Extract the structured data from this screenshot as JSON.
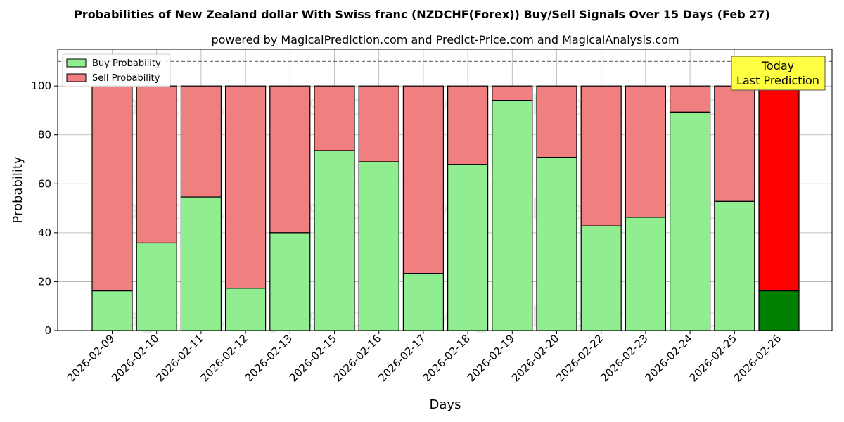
{
  "chart_data": {
    "type": "bar",
    "stacked": true,
    "title": "Probabilities of New Zealand dollar With Swiss franc (NZDCHF(Forex)) Buy/Sell Signals Over 15 Days (Feb 27)",
    "subtitle": "powered by MagicalPrediction.com and Predict-Price.com and MagicalAnalysis.com",
    "xlabel": "Days",
    "ylabel": "Probability",
    "ylim": [
      0,
      115
    ],
    "yticks": [
      0,
      20,
      40,
      60,
      80,
      100
    ],
    "grid": true,
    "legend_position": "top-left",
    "reference_line": 110,
    "categories": [
      "2026-02-09",
      "2026-02-10",
      "2026-02-11",
      "2026-02-12",
      "2026-02-13",
      "2026-02-15",
      "2026-02-16",
      "2026-02-17",
      "2026-02-18",
      "2026-02-19",
      "2026-02-20",
      "2026-02-22",
      "2026-02-23",
      "2026-02-24",
      "2026-02-25",
      "2026-02-26"
    ],
    "series": [
      {
        "name": "Buy Probability",
        "color": "#90ee90",
        "values": [
          16.2,
          35.8,
          54.6,
          17.3,
          40.0,
          73.6,
          69.0,
          23.4,
          67.9,
          94.1,
          70.8,
          42.8,
          46.3,
          89.3,
          52.8,
          16.2
        ]
      },
      {
        "name": "Sell Probability",
        "color": "#f08080",
        "values": [
          83.8,
          64.2,
          45.4,
          82.7,
          60.0,
          26.4,
          31.0,
          76.6,
          32.1,
          5.9,
          29.2,
          57.2,
          53.7,
          10.7,
          47.2,
          83.8
        ]
      }
    ],
    "today_index": 15,
    "today_colors": {
      "buy": "#008000",
      "sell": "#ff0000"
    },
    "annotation": {
      "line1": "Today",
      "line2": "Last Prediction",
      "color": "#ffff44"
    },
    "watermarks": [
      "MagicalAnalysis.com",
      "MagicalPrediction.com"
    ]
  }
}
